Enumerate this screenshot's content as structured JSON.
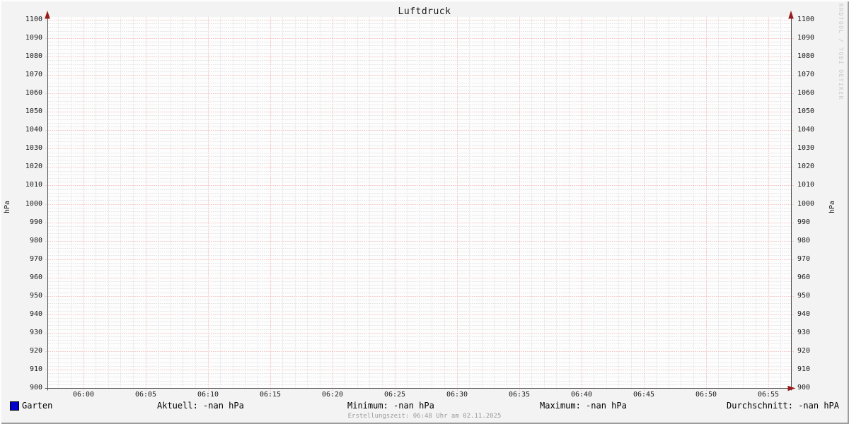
{
  "title": "Luftdruck",
  "watermark": "RRDTOOL / TOBI OETIKER",
  "footer": "Erstellungszeit: 06:48 Uhr am 02.11.2025",
  "y_axis_label_left": "hPa",
  "y_axis_label_right": "hPa",
  "legend": {
    "series_label": "Garten",
    "stats": [
      {
        "label": "Aktuell",
        "text": "Aktuell: -nan hPa"
      },
      {
        "label": "Minimum",
        "text": "Minimum: -nan hPa"
      },
      {
        "label": "Maximum",
        "text": "Maximum: -nan hPa"
      },
      {
        "label": "Durchschnitt",
        "text": "Durchschnitt: -nan hPA"
      }
    ]
  },
  "chart_data": {
    "type": "line",
    "title": "Luftdruck",
    "ylabel": "hPa",
    "ylabel_right": "hPa",
    "ylim": [
      900,
      1100
    ],
    "y_major_step": 10,
    "y_minor_step": 2,
    "y_ticks": [
      "1100",
      "1090",
      "1080",
      "1070",
      "1060",
      "1050",
      "1040",
      "1030",
      "1020",
      "1010",
      "1000",
      "990",
      "980",
      "970",
      "960",
      "950",
      "940",
      "930",
      "920",
      "910",
      "900"
    ],
    "x_ticks": [
      "06:00",
      "06:05",
      "06:10",
      "06:15",
      "06:20",
      "06:25",
      "06:30",
      "06:35",
      "06:40",
      "06:45",
      "06:50",
      "06:55"
    ],
    "x_minor_per_major": 5,
    "grid": {
      "major_color": "#f0a0a0",
      "minor_color": "#d4d4d4",
      "style": "dotted",
      "on": true
    },
    "axis_color": "#4d4d4d",
    "arrow_color": "#991b1b",
    "series": [
      {
        "name": "Garten",
        "color": "#0000cc",
        "values": []
      }
    ],
    "stats": {
      "aktuell": "-nan hPa",
      "minimum": "-nan hPa",
      "maximum": "-nan hPa",
      "durchschnitt": "-nan hPA"
    },
    "legend_position": "bottom"
  }
}
